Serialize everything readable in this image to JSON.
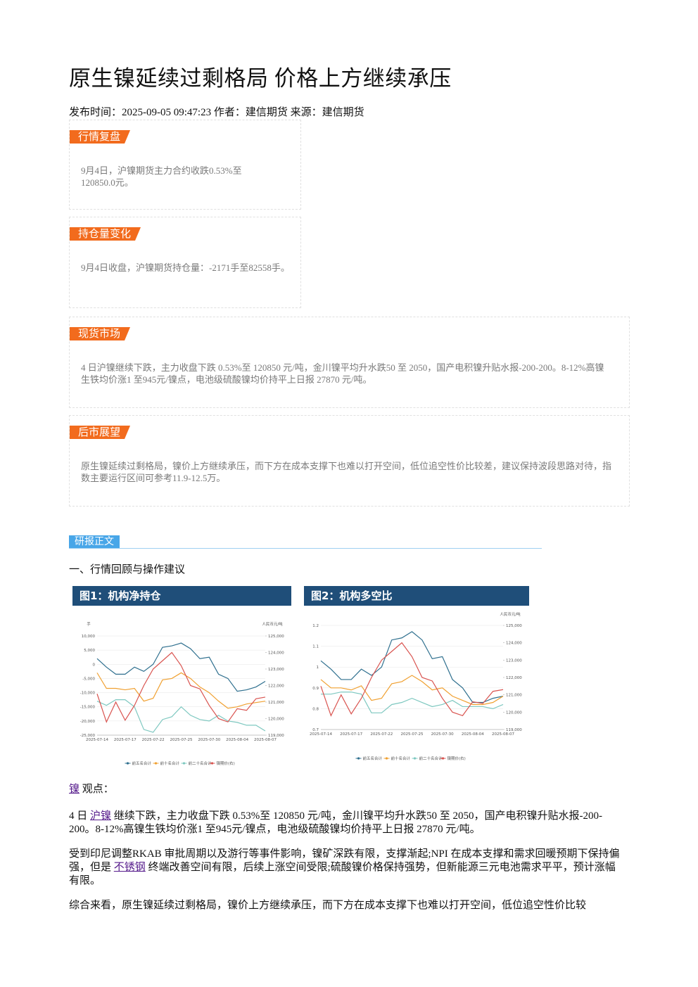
{
  "title": "原生镍延续过剩格局 价格上方继续承压",
  "meta": "发布时间：2025-09-05 09:47:23 作者：建信期货 来源：建信期货",
  "summary_boxes": [
    {
      "label": "行情复盘",
      "text": "9月4日，沪镍期货主力合约收跌0.53%至120850.0元。"
    },
    {
      "label": "持仓量变化",
      "text": "9月4日收盘，沪镍期货持仓量：-2171手至82558手。"
    },
    {
      "label": "现货市场",
      "text": "4 日沪镍继续下跌，主力收盘下跌 0.53%至 120850 元/吨，金川镍平均升水跌50 至 2050，国产电积镍升贴水报-200-200。8-12%高镍生铁均价涨1 至945元/镍点，电池级硫酸镍均价持平上日报 27870 元/吨。"
    },
    {
      "label": "后市展望",
      "text": "原生镍延续过剩格局，镍价上方继续承压，而下方在成本支撑下也难以打开空间，低位追空性价比较差，建议保持波段思路对待，指数主要运行区间可参考11.9-12.5万。"
    }
  ],
  "section_tab": "研报正文",
  "section_heading": "一、行情回顾与操作建议",
  "chart_data": [
    {
      "type": "line",
      "title": "图1：机构净持仓",
      "y_label": "手",
      "y2_label": "人民币元/吨",
      "categories": [
        "2025-07-14",
        null,
        null,
        "2025-07-17",
        null,
        null,
        "2025-07-22",
        null,
        null,
        "2025-07-25",
        null,
        null,
        "2025-07-30",
        null,
        null,
        "2025-08-04",
        null,
        null,
        "2025-08-07"
      ],
      "ylim": [
        -25000,
        10000
      ],
      "yticks": [
        {
          "value": -25000,
          "label": "-25,000"
        },
        {
          "value": -20000,
          "label": "-20,000"
        },
        {
          "value": -15000,
          "label": "-15,000"
        },
        {
          "value": -10000,
          "label": "-10,000"
        },
        {
          "value": -5000,
          "label": "-5,000"
        },
        0,
        {
          "value": 5000,
          "label": "5,000"
        },
        {
          "value": 10000,
          "label": "10,000"
        }
      ],
      "y2lim": [
        119000,
        125000
      ],
      "y2ticks": [
        {
          "value": 119000,
          "label": "119,000"
        },
        {
          "value": 120000,
          "label": "120,000"
        },
        {
          "value": 121000,
          "label": "121,000"
        },
        {
          "value": 122000,
          "label": "122,000"
        },
        {
          "value": 123000,
          "label": "123,000"
        },
        {
          "value": 124000,
          "label": "124,000"
        },
        {
          "value": 125000,
          "label": "125,000"
        }
      ],
      "series": [
        {
          "name": "前五名合计",
          "color": "#2e6f8e",
          "values": [
            2000,
            -1000,
            -3500,
            -3500,
            -1000,
            -2500,
            0,
            6000,
            6500,
            7500,
            5500,
            2000,
            2500,
            -3500,
            -5000,
            -9500,
            -9000,
            -8000,
            -6000
          ]
        },
        {
          "name": "前十名合计",
          "color": "#f0a030",
          "values": [
            -3000,
            -8500,
            -8500,
            -9000,
            -8500,
            -13000,
            -12000,
            -5500,
            -5000,
            -3000,
            -5000,
            -8000,
            -10000,
            -13000,
            -15500,
            -15000,
            -14000,
            -13500,
            -13000
          ]
        },
        {
          "name": "前二十名合计",
          "color": "#7ec8c0",
          "values": [
            -13000,
            -14500,
            -12500,
            -12500,
            -15000,
            -23000,
            -24000,
            -19500,
            -18500,
            -15000,
            -18000,
            -19500,
            -20000,
            -18000,
            -20000,
            -20500,
            -21500,
            -21500,
            -23500
          ]
        },
        {
          "name": "镍期价(右)",
          "color": "#d9534f",
          "axis": "y2",
          "values": [
            121500,
            119800,
            121000,
            119900,
            120800,
            122000,
            123000,
            123500,
            124000,
            123200,
            122000,
            121800,
            120800,
            120000,
            119800,
            120600,
            120500,
            121200,
            121300
          ]
        }
      ]
    },
    {
      "type": "line",
      "title": "图2：机构多空比",
      "y2_label": "人民币元/吨",
      "categories": [
        "2025-07-14",
        null,
        null,
        "2025-07-17",
        null,
        null,
        "2025-07-22",
        null,
        null,
        "2025-07-25",
        null,
        null,
        "2025-07-30",
        null,
        null,
        "2025-08-04",
        null,
        null,
        "2025-08-07"
      ],
      "ylim": [
        0.7,
        1.2
      ],
      "yticks": [
        0.7,
        0.8,
        0.9,
        1,
        1.1,
        1.2
      ],
      "y2lim": [
        119000,
        125000
      ],
      "y2ticks": [
        {
          "value": 119000,
          "label": "119,000"
        },
        {
          "value": 120000,
          "label": "120,000"
        },
        {
          "value": 121000,
          "label": "121,000"
        },
        {
          "value": 122000,
          "label": "122,000"
        },
        {
          "value": 123000,
          "label": "123,000"
        },
        {
          "value": 124000,
          "label": "124,000"
        },
        {
          "value": 125000,
          "label": "125,000"
        }
      ],
      "series": [
        {
          "name": "前五名合计",
          "color": "#2e6f8e",
          "values": [
            1.03,
            0.99,
            0.94,
            0.94,
            0.99,
            0.96,
            1.0,
            1.13,
            1.14,
            1.17,
            1.13,
            1.04,
            1.05,
            0.94,
            0.9,
            0.83,
            0.83,
            0.85,
            0.86
          ]
        },
        {
          "name": "前十名合计",
          "color": "#f0a030",
          "values": [
            0.94,
            0.9,
            0.9,
            0.89,
            0.91,
            0.84,
            0.85,
            0.92,
            0.93,
            0.96,
            0.93,
            0.89,
            0.9,
            0.86,
            0.84,
            0.82,
            0.82,
            0.83,
            0.86
          ]
        },
        {
          "name": "前二十名合计",
          "color": "#7ec8c0",
          "values": [
            0.87,
            0.87,
            0.88,
            0.88,
            0.87,
            0.78,
            0.78,
            0.82,
            0.83,
            0.85,
            0.83,
            0.81,
            0.82,
            0.84,
            0.81,
            0.81,
            0.81,
            0.8,
            0.82
          ]
        },
        {
          "name": "镍期价(右)",
          "color": "#d9534f",
          "axis": "y2",
          "values": [
            121500,
            119800,
            121000,
            119900,
            120800,
            122000,
            123000,
            123500,
            124000,
            123200,
            122000,
            121800,
            120800,
            120000,
            119800,
            120600,
            120500,
            121200,
            121300
          ]
        }
      ]
    }
  ],
  "viewpoint": [
    {
      "link": "镍"
    },
    {
      "text": " 观点："
    }
  ],
  "paragraphs": [
    [
      {
        "text": "4 日 "
      },
      {
        "link": "沪镍"
      },
      {
        "text": " 继续下跌，主力收盘下跌 0.53%至 120850 元/吨，金川镍平均升水跌50 至 2050，国产电积镍升贴水报-200-200。8-12%高镍生铁均价涨1 至945元/镍点，电池级硫酸镍均价持平上日报 27870 元/吨。"
      }
    ],
    [
      {
        "text": "受到印尼调整RKAB 审批周期以及游行等事件影响，镍矿深跌有限，支撑渐起;NPI 在成本支撑和需求回暖预期下保持偏强，但是 "
      },
      {
        "link": "不锈钢"
      },
      {
        "text": " 终端改善空间有限，后续上涨空间受限;硫酸镍价格保持强势，但新能源三元电池需求平平，预计涨幅有限。"
      }
    ],
    [
      {
        "text": "综合来看，原生镍延续过剩格局，镍价上方继续承压，而下方在成本支撑下也难以打开空间，低位追空性价比较"
      }
    ]
  ]
}
